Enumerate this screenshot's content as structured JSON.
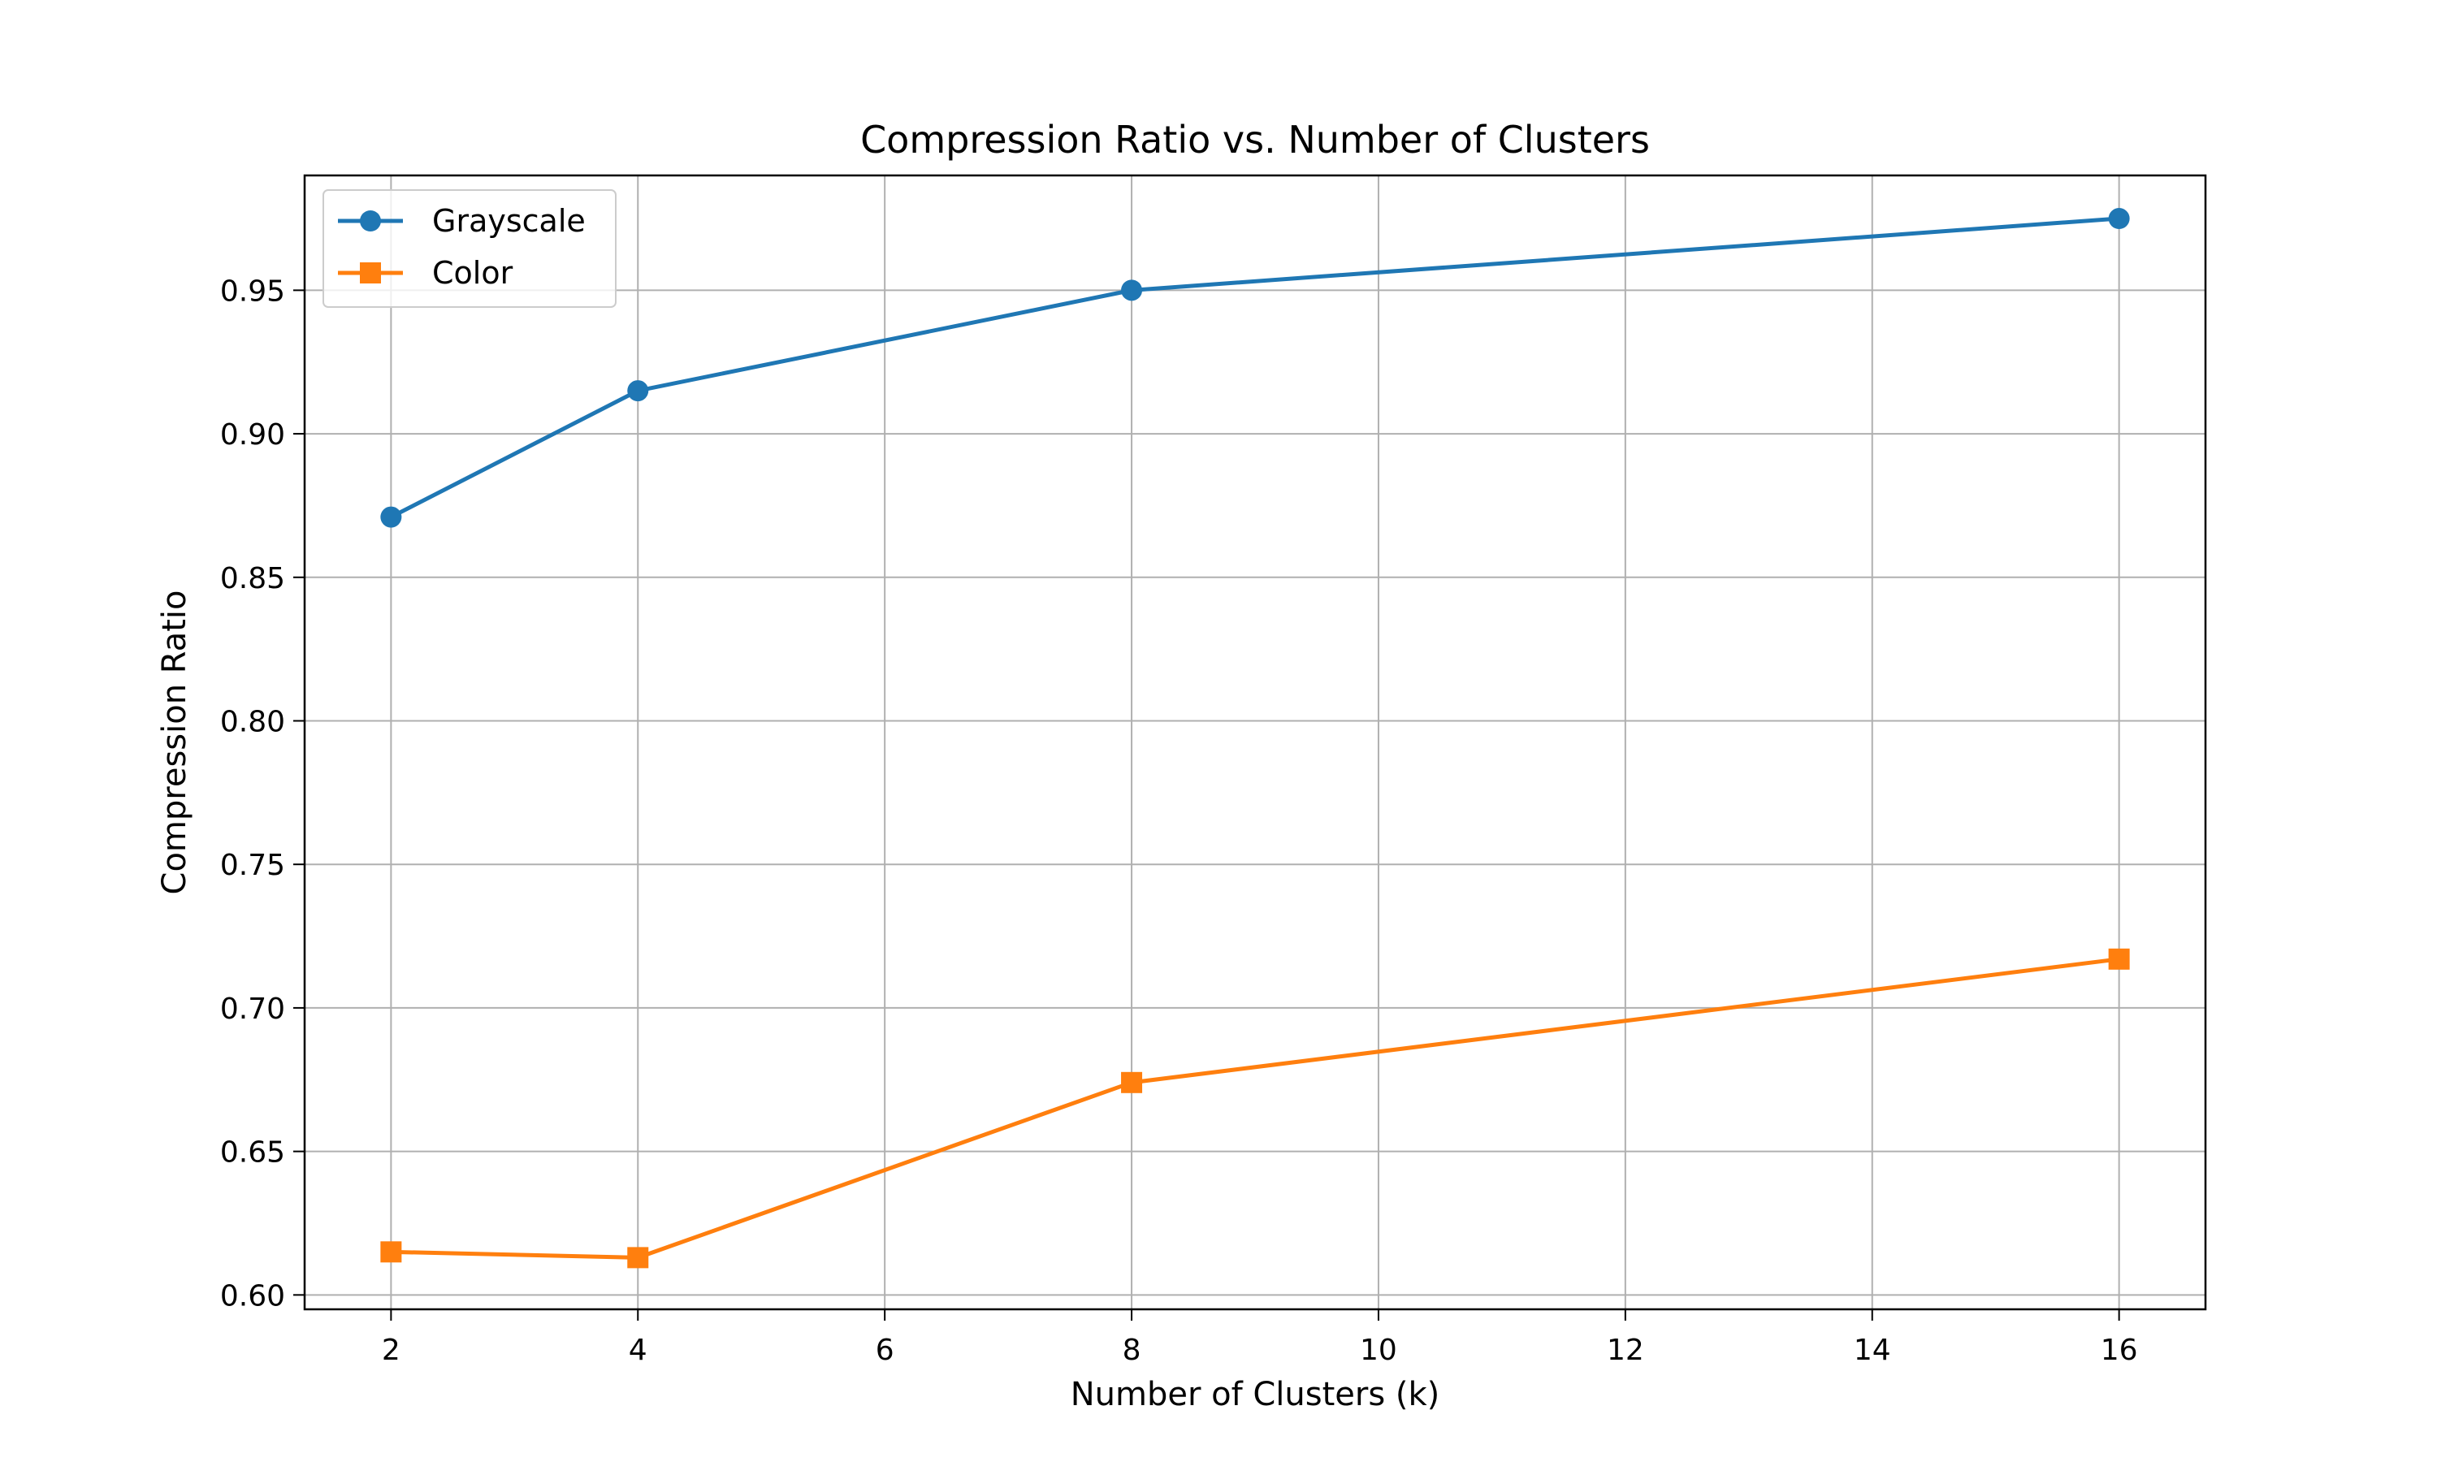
{
  "chart_data": {
    "type": "line",
    "title": "Compression Ratio vs. Number of Clusters",
    "xlabel": "Number of Clusters (k)",
    "ylabel": "Compression Ratio",
    "xlim": [
      1.3,
      16.7
    ],
    "ylim": [
      0.595,
      0.99
    ],
    "xticks": [
      2,
      4,
      6,
      8,
      10,
      12,
      14,
      16
    ],
    "yticks": [
      0.6,
      0.65,
      0.7,
      0.75,
      0.8,
      0.85,
      0.9,
      0.95
    ],
    "grid": true,
    "legend_position": "top-left",
    "x": [
      2,
      4,
      8,
      16
    ],
    "series": [
      {
        "name": "Grayscale",
        "color": "#1f77b4",
        "marker": "circle",
        "values": [
          0.871,
          0.915,
          0.95,
          0.975
        ]
      },
      {
        "name": "Color",
        "color": "#ff7f0e",
        "marker": "square",
        "values": [
          0.615,
          0.613,
          0.674,
          0.717
        ]
      }
    ]
  }
}
